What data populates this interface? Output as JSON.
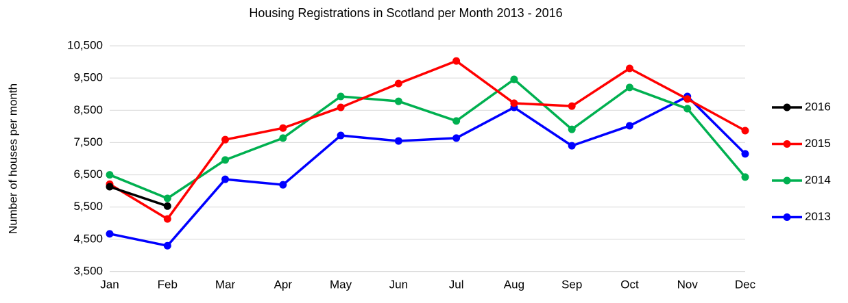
{
  "chart_data": {
    "type": "line",
    "title": "Housing Registrations in Scotland per Month 2013 - 2016",
    "y_label": "Number of houses per month",
    "categories": [
      "Jan",
      "Feb",
      "Mar",
      "Apr",
      "May",
      "Jun",
      "Jul",
      "Aug",
      "Sep",
      "Oct",
      "Nov",
      "Dec"
    ],
    "series": [
      {
        "name": "2016",
        "color": "#000000",
        "values": [
          6130,
          5530,
          null,
          null,
          null,
          null,
          null,
          null,
          null,
          null,
          null,
          null
        ]
      },
      {
        "name": "2015",
        "color": "#ff0000",
        "values": [
          6210,
          5130,
          7590,
          7950,
          8590,
          9330,
          10030,
          8720,
          8630,
          9800,
          8850,
          7870
        ]
      },
      {
        "name": "2014",
        "color": "#00b050",
        "values": [
          6500,
          5770,
          6960,
          7640,
          8930,
          8780,
          8170,
          9460,
          7910,
          9210,
          8550,
          6430
        ]
      },
      {
        "name": "2013",
        "color": "#0000ff",
        "values": [
          4670,
          4300,
          6360,
          6190,
          7720,
          7550,
          7640,
          8590,
          7400,
          8020,
          8930,
          7150
        ]
      }
    ],
    "ylim": [
      3500,
      10500
    ],
    "yticks": [
      {
        "value": 3500,
        "label": "3,500"
      },
      {
        "value": 4500,
        "label": "4,500"
      },
      {
        "value": 5500,
        "label": "5,500"
      },
      {
        "value": 6500,
        "label": "6,500"
      },
      {
        "value": 7500,
        "label": "7,500"
      },
      {
        "value": 8500,
        "label": "8,500"
      },
      {
        "value": 9500,
        "label": "9,500"
      },
      {
        "value": 10500,
        "label": "10,500"
      }
    ],
    "grid": true,
    "legend": "right"
  }
}
